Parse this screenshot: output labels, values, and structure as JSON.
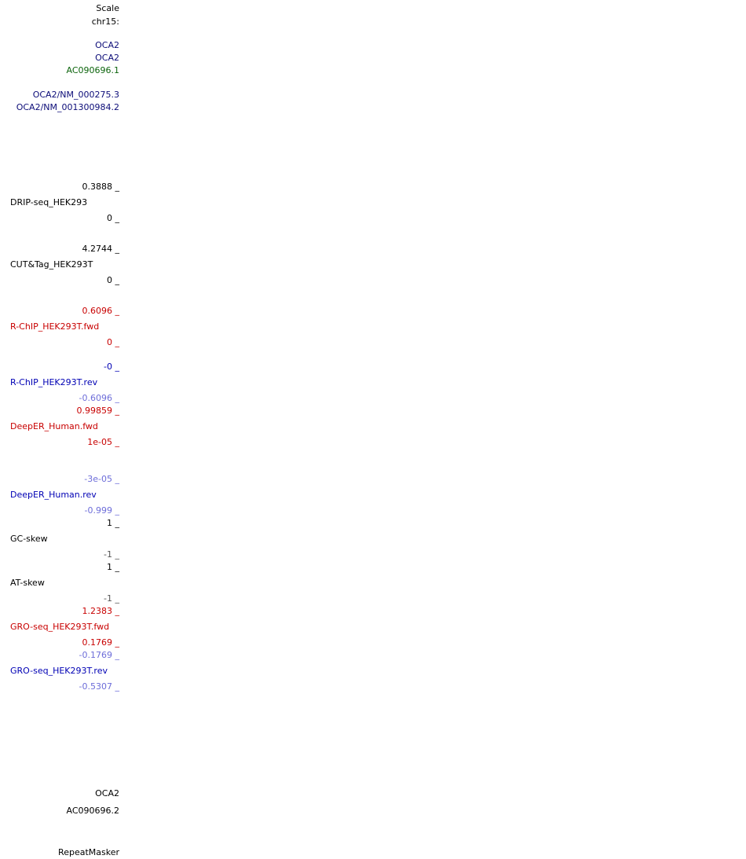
{
  "header": {
    "scale": "Scale",
    "chrom": "chr15:"
  },
  "genes": {
    "oca2_1": "OCA2",
    "oca2_2": "OCA2",
    "ac090696_1": "AC090696.1",
    "refseq_1": "OCA2/NM_000275.3",
    "refseq_2": "OCA2/NM_001300984.2"
  },
  "tracks": {
    "drip": {
      "max": "0.3888 _",
      "name": "DRIP-seq_HEK293",
      "min": "0 _"
    },
    "cuttag": {
      "max": "4.2744 _",
      "name": "CUT&Tag_HEK293T",
      "min": "0 _"
    },
    "rchip_fwd": {
      "max": "0.6096 _",
      "name": "R-ChIP_HEK293T.fwd",
      "min": "0 _"
    },
    "rchip_rev": {
      "max": "-0 _",
      "name": "R-ChIP_HEK293T.rev",
      "min": "-0.6096 _"
    },
    "deeper_fwd": {
      "max": "0.99859 _",
      "name": "DeepER_Human.fwd",
      "min": "1e-05 _"
    },
    "deeper_rev": {
      "max": "-3e-05 _",
      "name": "DeepER_Human.rev",
      "min": "-0.999 _"
    },
    "gc_skew": {
      "max": "1 _",
      "name": "GC-skew",
      "min": "-1 _"
    },
    "at_skew": {
      "max": "1 _",
      "name": "AT-skew",
      "min": "-1 _"
    },
    "gro_fwd": {
      "max": "1.2383 _",
      "name": "GRO-seq_HEK293T.fwd",
      "min": "0.1769 _"
    },
    "gro_rev": {
      "max": "-0.1769 _",
      "name": "GRO-seq_HEK293T.rev",
      "min": "-0.5307 _"
    }
  },
  "bottom": {
    "oca2": "OCA2",
    "ac090696_2": "AC090696.2",
    "repeatmasker": "RepeatMasker"
  },
  "colors": {
    "navy": "#0c0c78",
    "green": "#0c640c",
    "red": "#c80000",
    "blue": "#0000b4",
    "lightblue": "#6d6dd9"
  }
}
